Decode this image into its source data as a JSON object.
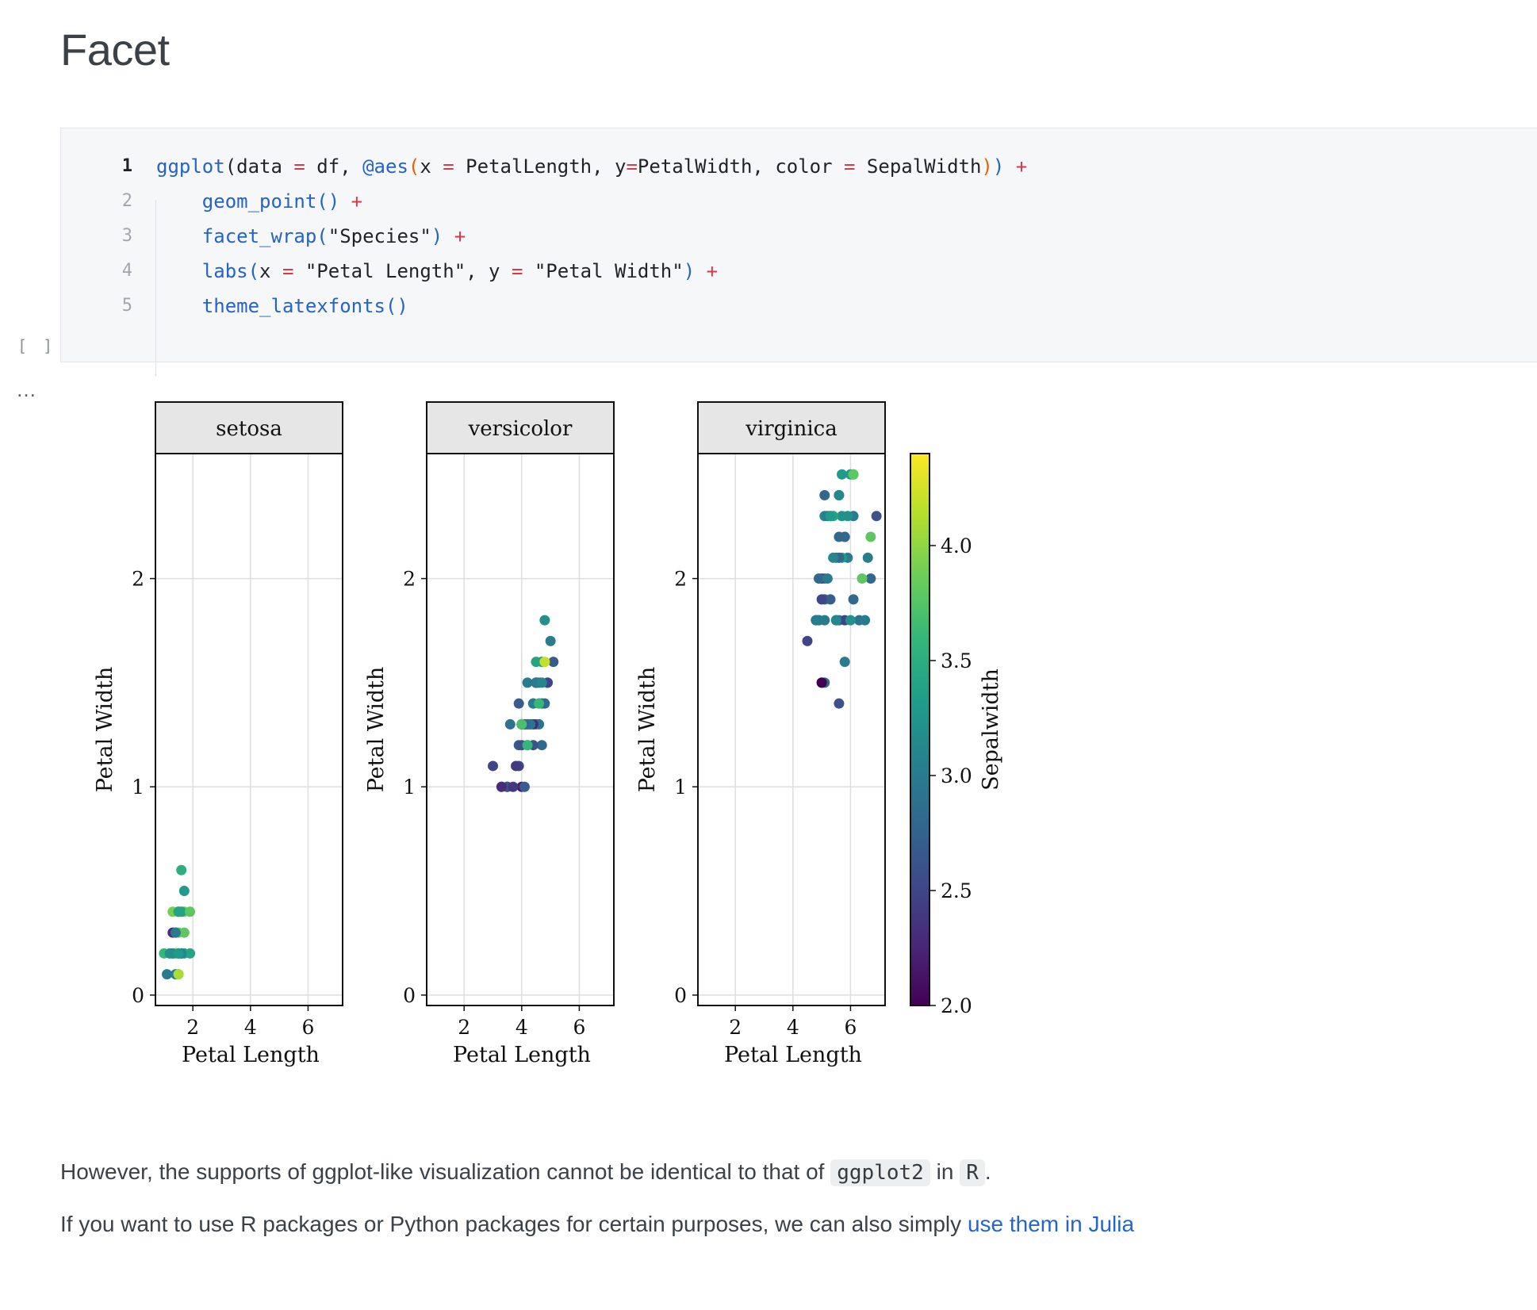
{
  "page": {
    "title": "Facet"
  },
  "code_cell": {
    "bracket": "[ ]",
    "output_dots": "…",
    "lines": [
      {
        "no": "1",
        "tokens": [
          {
            "t": "ggplot",
            "c": "fn"
          },
          {
            "t": "(",
            "c": "str"
          },
          {
            "t": "data ",
            "c": "str"
          },
          {
            "t": "=",
            "c": "op"
          },
          {
            "t": " df, ",
            "c": "str"
          },
          {
            "t": "@aes",
            "c": "fn"
          },
          {
            "t": "(",
            "c": "paren-o"
          },
          {
            "t": "x ",
            "c": "str"
          },
          {
            "t": "=",
            "c": "op"
          },
          {
            "t": " PetalLength, y",
            "c": "str"
          },
          {
            "t": "=",
            "c": "op"
          },
          {
            "t": "PetalWidth, color ",
            "c": "str"
          },
          {
            "t": "=",
            "c": "op"
          },
          {
            "t": " SepalWidth",
            "c": "str"
          },
          {
            "t": ")",
            "c": "paren-o"
          },
          {
            "t": ")",
            "c": "fn"
          },
          {
            "t": " ",
            "c": "str"
          },
          {
            "t": "+",
            "c": "op"
          }
        ]
      },
      {
        "no": "2",
        "tokens": [
          {
            "t": "    ",
            "c": "str"
          },
          {
            "t": "geom_point()",
            "c": "fn"
          },
          {
            "t": " ",
            "c": "str"
          },
          {
            "t": "+",
            "c": "op"
          }
        ]
      },
      {
        "no": "3",
        "tokens": [
          {
            "t": "    ",
            "c": "str"
          },
          {
            "t": "facet_wrap(",
            "c": "fn"
          },
          {
            "t": "\"Species\"",
            "c": "str"
          },
          {
            "t": ")",
            "c": "fn"
          },
          {
            "t": " ",
            "c": "str"
          },
          {
            "t": "+",
            "c": "op"
          }
        ]
      },
      {
        "no": "4",
        "tokens": [
          {
            "t": "    ",
            "c": "str"
          },
          {
            "t": "labs(",
            "c": "fn"
          },
          {
            "t": "x ",
            "c": "str"
          },
          {
            "t": "=",
            "c": "op"
          },
          {
            "t": " \"Petal Length\", y ",
            "c": "str"
          },
          {
            "t": "=",
            "c": "op"
          },
          {
            "t": " \"Petal Width\"",
            "c": "str"
          },
          {
            "t": ")",
            "c": "fn"
          },
          {
            "t": " ",
            "c": "str"
          },
          {
            "t": "+",
            "c": "op"
          }
        ]
      },
      {
        "no": "5",
        "tokens": [
          {
            "t": "    ",
            "c": "str"
          },
          {
            "t": "theme_latexfonts()",
            "c": "fn"
          }
        ]
      }
    ]
  },
  "chart_data": {
    "type": "scatter",
    "xlabel": "Petal Length",
    "ylabel": "Petal Width",
    "xlim": [
      0.7,
      7.2
    ],
    "ylim": [
      -0.05,
      2.6
    ],
    "xticks": [
      2,
      4,
      6
    ],
    "yticks": [
      0,
      1,
      2
    ],
    "grid": true,
    "colorbar": {
      "label": "Sepalwidth",
      "range": [
        2.0,
        4.4
      ],
      "ticks": [
        "2.0",
        "2.5",
        "3.0",
        "3.5",
        "4.0"
      ],
      "tick_values": [
        2.0,
        2.5,
        3.0,
        3.5,
        4.0
      ],
      "colormap": "viridis"
    },
    "facets": [
      {
        "name": "setosa",
        "points": [
          [
            1.4,
            0.2,
            3.5
          ],
          [
            1.4,
            0.2,
            3.0
          ],
          [
            1.3,
            0.2,
            3.2
          ],
          [
            1.5,
            0.2,
            3.1
          ],
          [
            1.4,
            0.2,
            3.6
          ],
          [
            1.7,
            0.4,
            3.9
          ],
          [
            1.4,
            0.3,
            3.4
          ],
          [
            1.5,
            0.2,
            3.4
          ],
          [
            1.4,
            0.2,
            2.9
          ],
          [
            1.5,
            0.1,
            3.1
          ],
          [
            1.5,
            0.2,
            3.7
          ],
          [
            1.6,
            0.2,
            3.4
          ],
          [
            1.4,
            0.1,
            3.0
          ],
          [
            1.1,
            0.1,
            3.0
          ],
          [
            1.2,
            0.2,
            4.0
          ],
          [
            1.5,
            0.4,
            4.4
          ],
          [
            1.3,
            0.4,
            3.9
          ],
          [
            1.4,
            0.3,
            3.5
          ],
          [
            1.7,
            0.3,
            3.8
          ],
          [
            1.5,
            0.3,
            3.8
          ],
          [
            1.7,
            0.2,
            3.4
          ],
          [
            1.5,
            0.4,
            3.7
          ],
          [
            1.0,
            0.2,
            3.6
          ],
          [
            1.7,
            0.5,
            3.3
          ],
          [
            1.9,
            0.2,
            3.4
          ],
          [
            1.6,
            0.2,
            3.0
          ],
          [
            1.6,
            0.4,
            3.4
          ],
          [
            1.5,
            0.2,
            3.5
          ],
          [
            1.4,
            0.2,
            3.4
          ],
          [
            1.6,
            0.2,
            3.2
          ],
          [
            1.6,
            0.2,
            3.1
          ],
          [
            1.5,
            0.4,
            3.4
          ],
          [
            1.5,
            0.1,
            4.1
          ],
          [
            1.4,
            0.2,
            4.2
          ],
          [
            1.2,
            0.2,
            3.2
          ],
          [
            1.3,
            0.2,
            3.5
          ],
          [
            1.3,
            0.3,
            2.3
          ],
          [
            1.9,
            0.4,
            3.8
          ],
          [
            1.6,
            0.6,
            3.5
          ],
          [
            1.4,
            0.3,
            3.0
          ],
          [
            1.3,
            0.2,
            3.2
          ],
          [
            1.5,
            0.2,
            3.3
          ]
        ]
      },
      {
        "name": "versicolor",
        "points": [
          [
            4.7,
            1.4,
            3.2
          ],
          [
            4.5,
            1.5,
            3.2
          ],
          [
            4.9,
            1.5,
            3.1
          ],
          [
            4.0,
            1.3,
            2.3
          ],
          [
            4.6,
            1.5,
            2.8
          ],
          [
            4.5,
            1.3,
            2.8
          ],
          [
            4.7,
            1.6,
            3.3
          ],
          [
            3.3,
            1.0,
            2.4
          ],
          [
            4.6,
            1.3,
            2.9
          ],
          [
            3.9,
            1.4,
            2.7
          ],
          [
            3.5,
            1.0,
            2.0
          ],
          [
            4.2,
            1.5,
            3.0
          ],
          [
            4.0,
            1.0,
            2.2
          ],
          [
            4.7,
            1.4,
            2.9
          ],
          [
            3.6,
            1.3,
            2.9
          ],
          [
            4.4,
            1.4,
            3.1
          ],
          [
            4.5,
            1.5,
            3.0
          ],
          [
            4.1,
            1.0,
            2.7
          ],
          [
            4.5,
            1.5,
            2.2
          ],
          [
            3.9,
            1.1,
            2.5
          ],
          [
            4.8,
            1.8,
            3.2
          ],
          [
            4.0,
            1.3,
            2.8
          ],
          [
            4.9,
            1.5,
            2.5
          ],
          [
            4.7,
            1.2,
            2.8
          ],
          [
            4.3,
            1.3,
            2.9
          ],
          [
            4.4,
            1.4,
            3.0
          ],
          [
            4.8,
            1.4,
            2.8
          ],
          [
            5.0,
            1.7,
            3.0
          ],
          [
            4.5,
            1.5,
            2.9
          ],
          [
            3.5,
            1.0,
            2.6
          ],
          [
            3.8,
            1.1,
            2.4
          ],
          [
            3.7,
            1.0,
            2.4
          ],
          [
            3.9,
            1.2,
            2.7
          ],
          [
            5.1,
            1.6,
            2.7
          ],
          [
            4.5,
            1.5,
            3.0
          ],
          [
            4.5,
            1.6,
            3.4
          ],
          [
            4.7,
            1.5,
            3.1
          ],
          [
            4.4,
            1.3,
            2.3
          ],
          [
            4.1,
            1.3,
            3.0
          ],
          [
            4.0,
            1.3,
            2.5
          ],
          [
            4.4,
            1.2,
            2.6
          ],
          [
            4.6,
            1.4,
            3.0
          ],
          [
            4.0,
            1.2,
            2.6
          ],
          [
            3.3,
            1.0,
            2.3
          ],
          [
            4.2,
            1.3,
            2.7
          ],
          [
            4.2,
            1.2,
            3.0
          ],
          [
            4.2,
            1.3,
            2.9
          ],
          [
            4.3,
            1.3,
            2.9
          ],
          [
            3.0,
            1.1,
            2.5
          ],
          [
            4.1,
            1.3,
            2.8
          ],
          [
            4.8,
            1.6,
            4.2
          ],
          [
            4.6,
            1.4,
            3.6
          ],
          [
            4.2,
            1.2,
            3.6
          ],
          [
            4.0,
            1.3,
            3.7
          ]
        ]
      },
      {
        "name": "virginica",
        "points": [
          [
            6.0,
            2.5,
            3.3
          ],
          [
            5.1,
            1.9,
            2.7
          ],
          [
            5.9,
            2.1,
            3.0
          ],
          [
            5.6,
            1.8,
            2.9
          ],
          [
            5.8,
            2.2,
            3.0
          ],
          [
            6.6,
            2.1,
            3.0
          ],
          [
            4.5,
            1.7,
            2.5
          ],
          [
            6.3,
            1.8,
            2.9
          ],
          [
            5.8,
            1.8,
            2.5
          ],
          [
            6.1,
            2.5,
            3.6
          ],
          [
            5.1,
            2.0,
            3.2
          ],
          [
            5.3,
            1.9,
            2.7
          ],
          [
            5.5,
            2.1,
            3.0
          ],
          [
            5.0,
            2.0,
            2.5
          ],
          [
            5.1,
            2.4,
            2.8
          ],
          [
            5.3,
            2.3,
            3.2
          ],
          [
            5.5,
            1.8,
            3.0
          ],
          [
            6.7,
            2.2,
            3.8
          ],
          [
            6.9,
            2.3,
            2.6
          ],
          [
            5.0,
            1.5,
            2.2
          ],
          [
            5.7,
            2.3,
            3.2
          ],
          [
            4.9,
            2.0,
            2.8
          ],
          [
            6.7,
            2.0,
            2.8
          ],
          [
            4.9,
            1.8,
            2.7
          ],
          [
            5.7,
            2.1,
            3.3
          ],
          [
            6.0,
            1.8,
            3.2
          ],
          [
            4.8,
            1.8,
            2.8
          ],
          [
            4.9,
            1.8,
            3.0
          ],
          [
            5.6,
            2.1,
            2.8
          ],
          [
            5.8,
            1.6,
            3.0
          ],
          [
            6.1,
            1.9,
            2.8
          ],
          [
            6.4,
            2.0,
            3.8
          ],
          [
            5.6,
            2.2,
            2.8
          ],
          [
            5.1,
            1.5,
            2.8
          ],
          [
            5.6,
            1.4,
            2.6
          ],
          [
            6.1,
            2.3,
            3.0
          ],
          [
            5.6,
            2.4,
            3.4
          ],
          [
            5.5,
            1.8,
            3.1
          ],
          [
            4.8,
            1.8,
            3.0
          ],
          [
            5.4,
            2.1,
            3.1
          ],
          [
            5.6,
            2.4,
            3.1
          ],
          [
            5.1,
            2.3,
            3.1
          ],
          [
            5.9,
            2.3,
            3.2
          ],
          [
            5.7,
            2.5,
            3.3
          ],
          [
            5.2,
            2.3,
            3.0
          ],
          [
            5.0,
            1.9,
            2.5
          ],
          [
            5.2,
            2.0,
            3.0
          ],
          [
            5.4,
            2.3,
            3.4
          ],
          [
            5.1,
            1.8,
            3.0
          ],
          [
            6.1,
            2.5,
            3.8
          ],
          [
            5.3,
            2.3,
            3.3
          ],
          [
            5.8,
            2.2,
            2.8
          ],
          [
            5.0,
            1.5,
            2.0
          ],
          [
            6.5,
            1.8,
            3.0
          ]
        ]
      }
    ]
  },
  "prose": {
    "p1_before": "However, the supports of ggplot-like visualization cannot be identical to that of ",
    "p1_code1": "ggplot2",
    "p1_mid": " in ",
    "p1_code2": "R",
    "p1_after": ".",
    "p2_before": "If you want to use R packages or Python packages for certain purposes, we can also simply ",
    "p2_link": "use them in Julia"
  }
}
